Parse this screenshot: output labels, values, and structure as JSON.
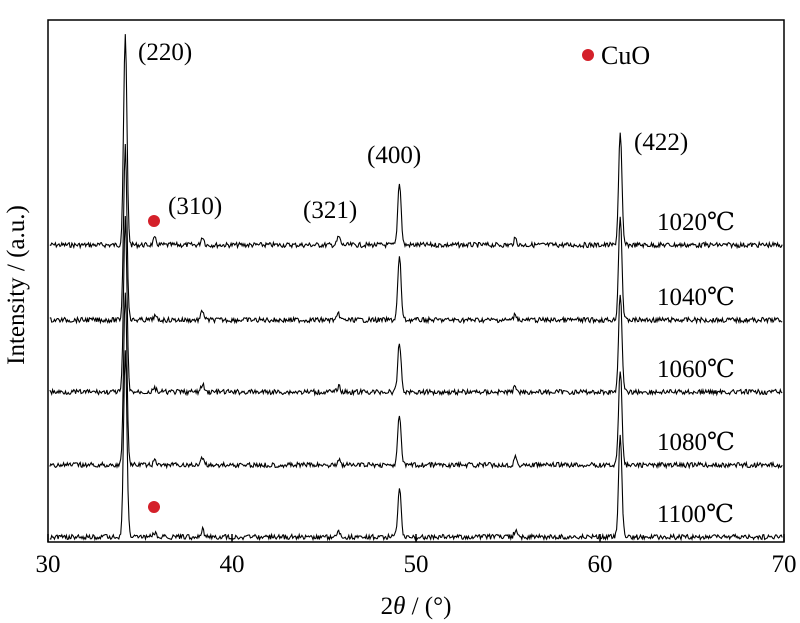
{
  "chart_data": {
    "type": "line",
    "title": "",
    "xlabel_prefix": "2",
    "xlabel_theta": "θ",
    "xlabel_suffix": " / (°)",
    "ylabel": "Intensity / (a.u.)",
    "xlim": [
      30,
      70
    ],
    "xticks": [
      30,
      40,
      50,
      60,
      70
    ],
    "x_tick_labels": [
      "30",
      "40",
      "50",
      "60",
      "70"
    ],
    "y_tick_labels": false,
    "grid": false,
    "series": [
      {
        "name": "1020℃",
        "peaks": [
          {
            "x": 34.2,
            "h": 1.0
          },
          {
            "x": 35.8,
            "h": 0.03
          },
          {
            "x": 38.4,
            "h": 0.04
          },
          {
            "x": 45.8,
            "h": 0.04
          },
          {
            "x": 49.1,
            "h": 0.3
          },
          {
            "x": 55.4,
            "h": 0.03
          },
          {
            "x": 61.1,
            "h": 0.53
          }
        ]
      },
      {
        "name": "1040℃",
        "peaks": [
          {
            "x": 34.2,
            "h": 0.92
          },
          {
            "x": 35.8,
            "h": 0.02
          },
          {
            "x": 38.4,
            "h": 0.05
          },
          {
            "x": 45.8,
            "h": 0.03
          },
          {
            "x": 49.1,
            "h": 0.33
          },
          {
            "x": 55.4,
            "h": 0.03
          },
          {
            "x": 61.1,
            "h": 0.55
          }
        ]
      },
      {
        "name": "1060℃",
        "peaks": [
          {
            "x": 34.2,
            "h": 0.92
          },
          {
            "x": 35.8,
            "h": 0.02
          },
          {
            "x": 38.4,
            "h": 0.04
          },
          {
            "x": 45.8,
            "h": 0.03
          },
          {
            "x": 49.1,
            "h": 0.26
          },
          {
            "x": 55.4,
            "h": 0.03
          },
          {
            "x": 61.1,
            "h": 0.52
          }
        ]
      },
      {
        "name": "1080℃",
        "peaks": [
          {
            "x": 34.2,
            "h": 0.92
          },
          {
            "x": 35.8,
            "h": 0.02
          },
          {
            "x": 38.4,
            "h": 0.04
          },
          {
            "x": 45.8,
            "h": 0.03
          },
          {
            "x": 49.1,
            "h": 0.26
          },
          {
            "x": 55.4,
            "h": 0.04
          },
          {
            "x": 61.1,
            "h": 0.5
          }
        ]
      },
      {
        "name": "1100℃",
        "peaks": [
          {
            "x": 34.2,
            "h": 0.94
          },
          {
            "x": 35.8,
            "h": 0.02
          },
          {
            "x": 38.4,
            "h": 0.04
          },
          {
            "x": 45.8,
            "h": 0.03
          },
          {
            "x": 49.1,
            "h": 0.24
          },
          {
            "x": 55.4,
            "h": 0.03
          },
          {
            "x": 61.1,
            "h": 0.51
          }
        ]
      }
    ],
    "annotations": [
      {
        "text": "(220)",
        "x": 34.2
      },
      {
        "text": "(310)",
        "x": 35.8,
        "marker": "CuO"
      },
      {
        "text": "(321)",
        "x": 45.8
      },
      {
        "text": "(400)",
        "x": 49.1
      },
      {
        "text": "(422)",
        "x": 61.1
      }
    ],
    "legend": {
      "label": "CuO",
      "marker": "red-dot",
      "position": "top-right"
    },
    "colors": {
      "line": "#000000",
      "marker": "#d4202a"
    }
  }
}
